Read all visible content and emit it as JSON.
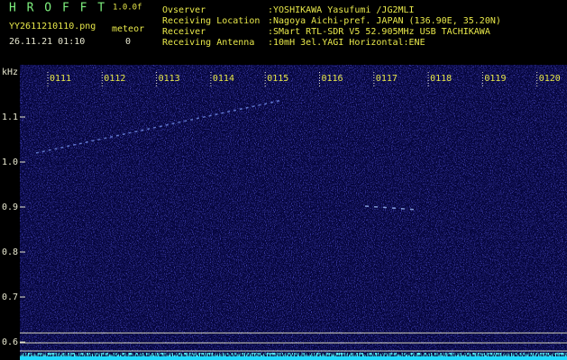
{
  "header": {
    "app": "H R O F F T",
    "version": "1.0.0f",
    "file": "YY2611210110.png",
    "meteor_label": "meteor",
    "datetime": "26.11.21 01:10",
    "meteor_count": "0",
    "info": [
      {
        "label": "Ovserver",
        "value": ":YOSHIKAWA Yasufumi /JG2MLI"
      },
      {
        "label": "Receiving Location",
        "value": ":Nagoya Aichi-pref. JAPAN (136.90E, 35.20N)"
      },
      {
        "label": "Receiver",
        "value": ":SMart RTL-SDR V5 52.905MHz USB TACHIKAWA"
      },
      {
        "label": "Receiving Antenna",
        "value": ":10mH 3el.YAGI Horizontal:ENE"
      }
    ]
  },
  "spectrogram": {
    "unit": "kHz",
    "freq_ticks": [
      "1.1",
      "1.0",
      "0.9",
      "0.8",
      "0.7",
      "0.6"
    ],
    "time_labels": [
      "0111",
      "0112",
      "0113",
      "0114",
      "0115",
      "0116",
      "0117",
      "0118",
      "0119",
      "0120"
    ]
  }
}
